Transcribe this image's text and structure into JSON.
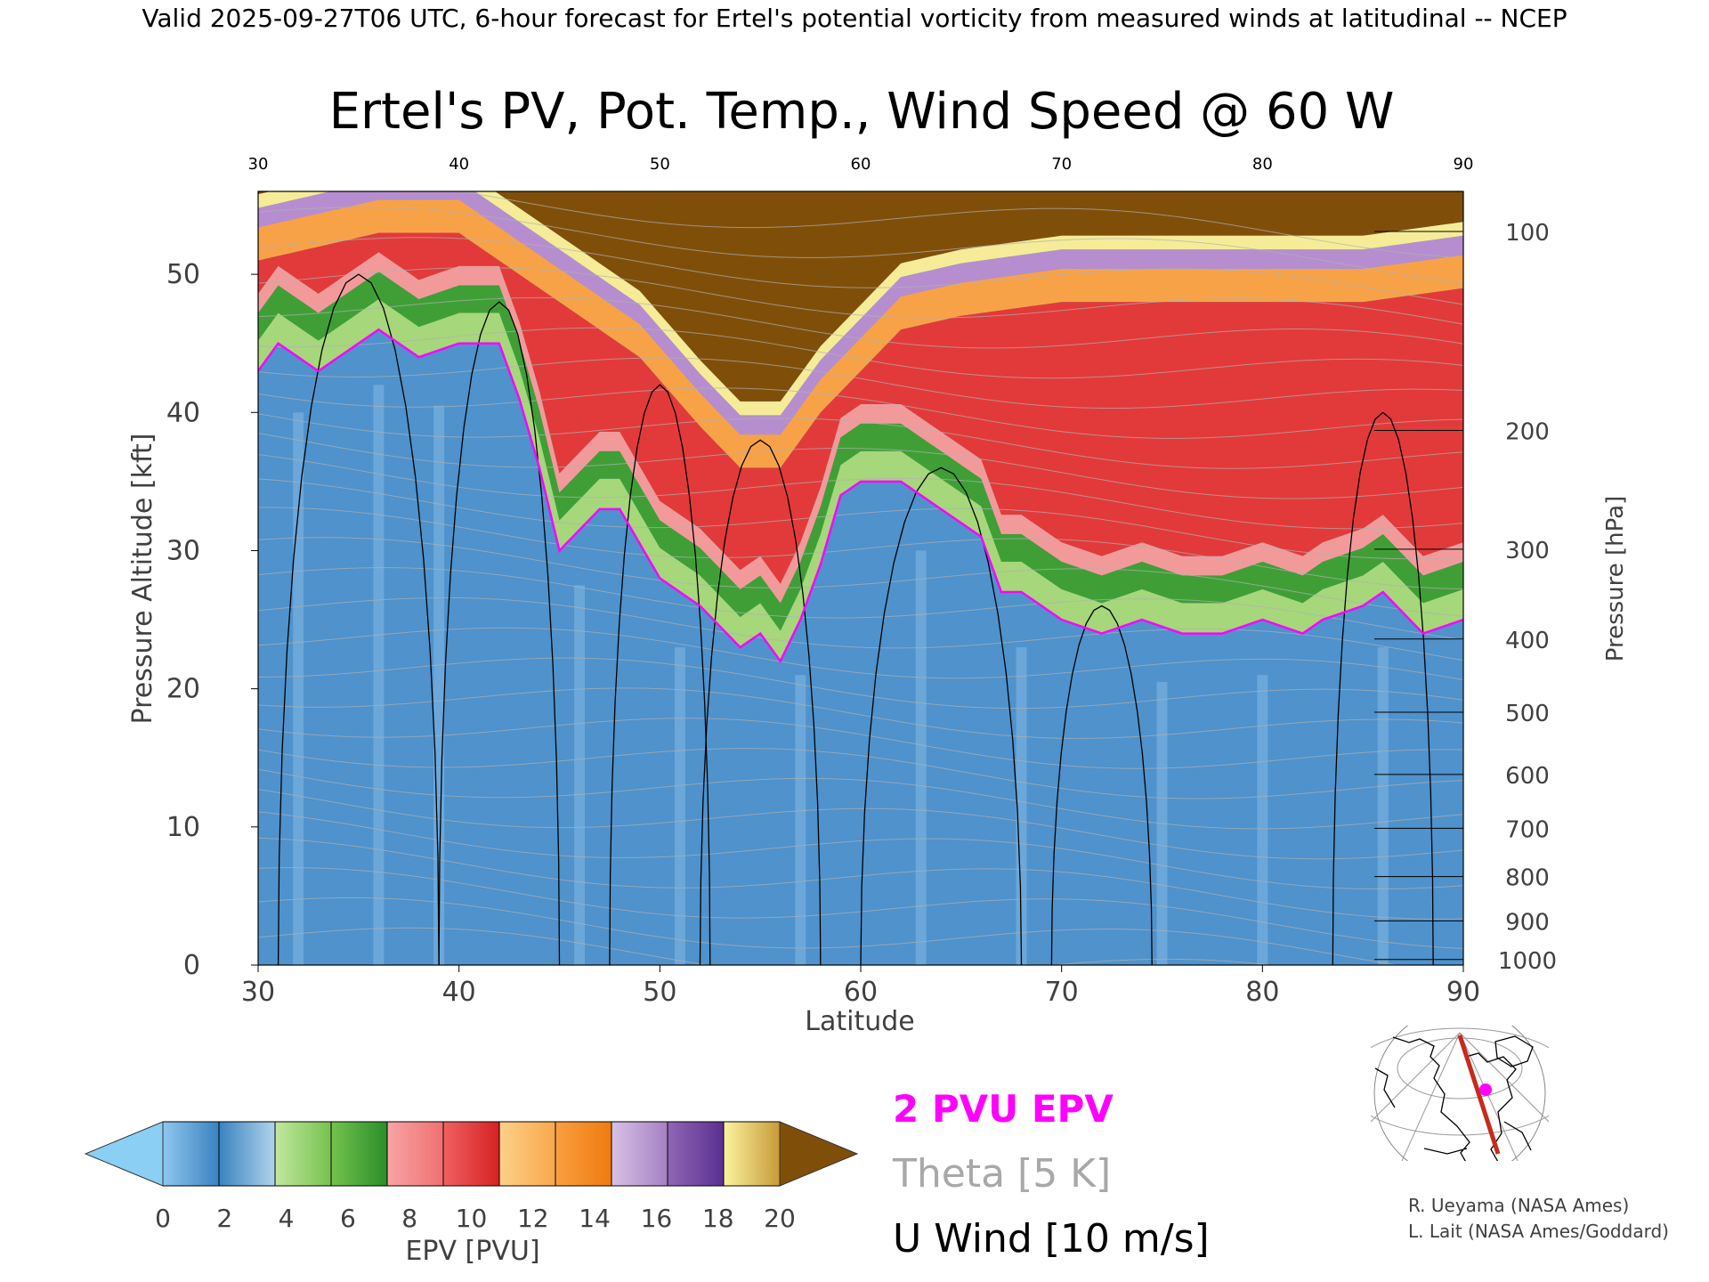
{
  "header": "Valid 2025-09-27T06 UTC, 6-hour forecast for Ertel's potential vorticity from measured winds at latitudinal -- NCEP",
  "title": "Ertel's PV, Pot. Temp., Wind Speed @ 60 W",
  "chart_data": {
    "type": "heatmap",
    "xlabel": "Latitude",
    "ylabel": "Pressure Altitude [kft]",
    "y2label": "Pressure [hPa]",
    "xlim": [
      30,
      90
    ],
    "ylim": [
      0,
      56
    ],
    "x_ticks": [
      "30",
      "40",
      "50",
      "60",
      "70",
      "80",
      "90"
    ],
    "y_ticks": [
      "0",
      "10",
      "20",
      "30",
      "40",
      "50"
    ],
    "x_ticks_top": [
      "30",
      "40",
      "50",
      "60",
      "70",
      "80",
      "90"
    ],
    "pressure_ticks": [
      {
        "label": "100",
        "kft": 53.1
      },
      {
        "label": "200",
        "kft": 38.7
      },
      {
        "label": "300",
        "kft": 30.1
      },
      {
        "label": "400",
        "kft": 23.6
      },
      {
        "label": "500",
        "kft": 18.3
      },
      {
        "label": "600",
        "kft": 13.8
      },
      {
        "label": "700",
        "kft": 9.9
      },
      {
        "label": "800",
        "kft": 6.4
      },
      {
        "label": "900",
        "kft": 3.2
      },
      {
        "label": "1000",
        "kft": 0.4
      }
    ],
    "colorbar": {
      "label": "EPV [PVU]",
      "tick_labels": [
        "0",
        "2",
        "4",
        "6",
        "8",
        "10",
        "12",
        "14",
        "16",
        "18",
        "20"
      ],
      "below_color": "#8ccff5",
      "above_color": "#7f4f0a",
      "bins": [
        [
          "#8fc7ee",
          "#3a82c0"
        ],
        [
          "#3a82c0",
          "#b0d4ec"
        ],
        [
          "#c2e7a0",
          "#75c24e"
        ],
        [
          "#75c24e",
          "#2a8e2a"
        ],
        [
          "#f8a4a4",
          "#f07070"
        ],
        [
          "#f06060",
          "#d62222"
        ],
        [
          "#fdd08a",
          "#f9a84a"
        ],
        [
          "#f9a040",
          "#f07a10"
        ],
        [
          "#d8c2e4",
          "#a580c4"
        ],
        [
          "#9066b6",
          "#5a3090"
        ],
        [
          "#fbf4a0",
          "#c89a38"
        ]
      ]
    },
    "tropopause_kft": [
      [
        30,
        43
      ],
      [
        31,
        45
      ],
      [
        33,
        43
      ],
      [
        35,
        45
      ],
      [
        36,
        46
      ],
      [
        38,
        44
      ],
      [
        40,
        45
      ],
      [
        42,
        45
      ],
      [
        43,
        41
      ],
      [
        44,
        36
      ],
      [
        45,
        30
      ],
      [
        47,
        33
      ],
      [
        48,
        33
      ],
      [
        50,
        28
      ],
      [
        52,
        26
      ],
      [
        54,
        23
      ],
      [
        55,
        24
      ],
      [
        56,
        22
      ],
      [
        57,
        25
      ],
      [
        58,
        29
      ],
      [
        59,
        34
      ],
      [
        60,
        35
      ],
      [
        62,
        35
      ],
      [
        64,
        33
      ],
      [
        66,
        31
      ],
      [
        67,
        27
      ],
      [
        68,
        27
      ],
      [
        70,
        25
      ],
      [
        72,
        24
      ],
      [
        74,
        25
      ],
      [
        76,
        24
      ],
      [
        78,
        24
      ],
      [
        80,
        25
      ],
      [
        82,
        24
      ],
      [
        83,
        25
      ],
      [
        85,
        26
      ],
      [
        86,
        27
      ],
      [
        88,
        24
      ],
      [
        90,
        25
      ]
    ],
    "upper_band_kft": [
      [
        30,
        51
      ],
      [
        33,
        52
      ],
      [
        36,
        53
      ],
      [
        40,
        53
      ],
      [
        43,
        50
      ],
      [
        46,
        47
      ],
      [
        49,
        44
      ],
      [
        52,
        39
      ],
      [
        54,
        36
      ],
      [
        56,
        36
      ],
      [
        58,
        40
      ],
      [
        60,
        43
      ],
      [
        62,
        46
      ],
      [
        65,
        47
      ],
      [
        70,
        48
      ],
      [
        75,
        48
      ],
      [
        80,
        48
      ],
      [
        85,
        48
      ],
      [
        90,
        49
      ]
    ],
    "series_legend": [
      {
        "label": "2 PVU EPV",
        "color": "#ff00ff"
      },
      {
        "label": "Theta [5 K]",
        "color": "#a8a8a8"
      },
      {
        "label": "U Wind [10 m/s]",
        "color": "#000000"
      }
    ],
    "grid": false
  },
  "credits": [
    "R. Ueyama (NASA Ames)",
    "L. Lait (NASA Ames/Goddard)"
  ]
}
